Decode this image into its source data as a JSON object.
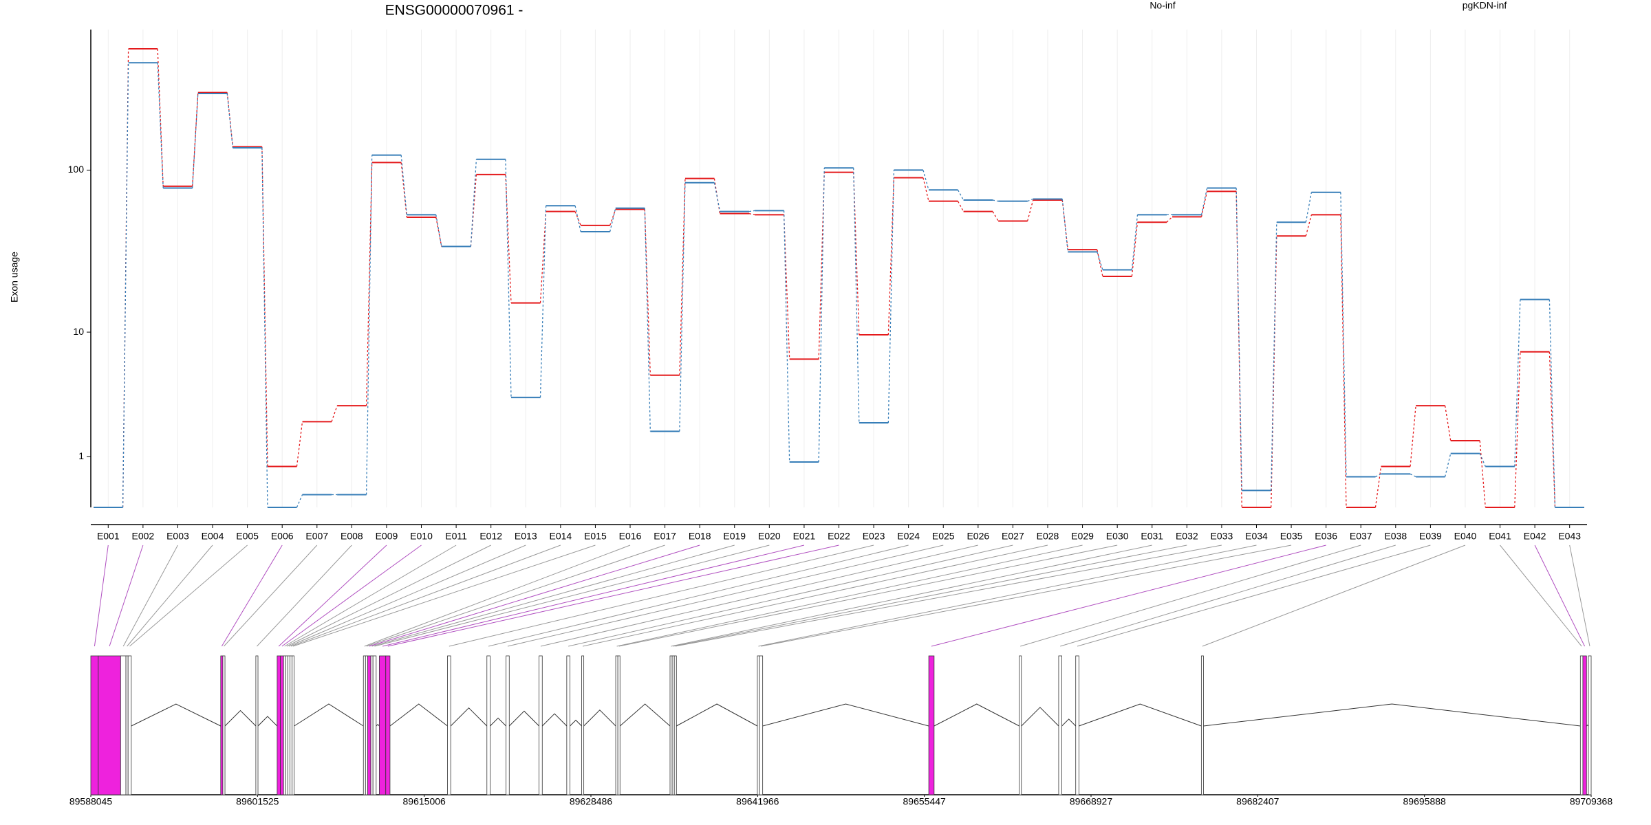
{
  "chart_data": [
    {
      "type": "step",
      "title": "ENSG00000070961 -",
      "y_label": "Exon usage",
      "yscale": "log1p",
      "grid": true,
      "ylim": [
        0,
        690
      ],
      "yticks": [
        1,
        10,
        100
      ],
      "categories": [
        "E001",
        "E002",
        "E003",
        "E004",
        "E005",
        "E006",
        "E007",
        "E008",
        "E009",
        "E010",
        "E011",
        "E012",
        "E013",
        "E014",
        "E015",
        "E016",
        "E017",
        "E018",
        "E019",
        "E020",
        "E021",
        "E022",
        "E023",
        "E024",
        "E025",
        "E026",
        "E027",
        "E028",
        "E029",
        "E030",
        "E031",
        "E032",
        "E033",
        "E034",
        "E035",
        "E036",
        "E037",
        "E038",
        "E039",
        "E040",
        "E041",
        "E042",
        "E043"
      ],
      "series": [
        {
          "name": "No-inf",
          "color": "#e41a1c",
          "values": [
            0,
            530,
            80,
            291,
            138,
            0.75,
            2.23,
            3.02,
            111,
            52,
            34.5,
            94,
            15.4,
            56.3,
            46.4,
            58,
            5.1,
            89,
            54.7,
            53.8,
            6.6,
            97,
            9.6,
            90,
            65,
            56.3,
            49.3,
            66,
            33,
            22.6,
            48.5,
            52.3,
            74.5,
            0,
            40,
            53.8,
            0,
            0.75,
            3.02,
            1.49,
            0,
            7.4,
            0
          ]
        },
        {
          "name": "pgKDN-inf",
          "color": "#377eb8",
          "values": [
            0,
            438,
            78,
            287,
            136,
            0,
            0.19,
            0.19,
            123,
            53.8,
            34.5,
            116,
            3.5,
            61,
            42.5,
            59,
            1.83,
            84,
            56.3,
            57,
            0.86,
            103,
            2.18,
            100,
            76,
            66,
            65,
            67,
            32,
            24.8,
            53.8,
            53.8,
            78,
            0.26,
            48.5,
            73.5,
            0.52,
            0.58,
            0.52,
            1.09,
            0.75,
            16.2,
            0
          ]
        }
      ]
    },
    {
      "type": "gene-model",
      "significant_color": "#ee22dd",
      "xlim": [
        89588045,
        89709368
      ],
      "xticks": [
        89588045,
        89601525,
        89615006,
        89628486,
        89641966,
        89655447,
        89668927,
        89682407,
        89695888,
        89709368
      ],
      "exons": [
        {
          "start": 89588045,
          "end": 89588648,
          "significant": true
        },
        {
          "start": 89588648,
          "end": 89590456,
          "significant": true
        },
        {
          "start": 89590456,
          "end": 89590886,
          "significant": false
        },
        {
          "start": 89590886,
          "end": 89591059,
          "significant": false
        },
        {
          "start": 89591059,
          "end": 89591317,
          "significant": false
        },
        {
          "start": 89598549,
          "end": 89598721,
          "significant": true
        },
        {
          "start": 89598721,
          "end": 89598894,
          "significant": false
        },
        {
          "start": 89601391,
          "end": 89601563,
          "significant": false
        },
        {
          "start": 89603113,
          "end": 89603371,
          "significant": true
        },
        {
          "start": 89603371,
          "end": 89603629,
          "significant": true
        },
        {
          "start": 89603629,
          "end": 89603801,
          "significant": false
        },
        {
          "start": 89603801,
          "end": 89603974,
          "significant": false
        },
        {
          "start": 89603974,
          "end": 89604146,
          "significant": false
        },
        {
          "start": 89604146,
          "end": 89604318,
          "significant": false
        },
        {
          "start": 89604318,
          "end": 89604490,
          "significant": false
        },
        {
          "start": 89610087,
          "end": 89610259,
          "significant": false
        },
        {
          "start": 89610259,
          "end": 89610431,
          "significant": false
        },
        {
          "start": 89610431,
          "end": 89610689,
          "significant": true
        },
        {
          "start": 89610689,
          "end": 89610862,
          "significant": false
        },
        {
          "start": 89610862,
          "end": 89611120,
          "significant": false
        },
        {
          "start": 89611378,
          "end": 89611895,
          "significant": true
        },
        {
          "start": 89611895,
          "end": 89612239,
          "significant": true
        },
        {
          "start": 89616889,
          "end": 89617147,
          "significant": false
        },
        {
          "start": 89620074,
          "end": 89620333,
          "significant": false
        },
        {
          "start": 89621624,
          "end": 89621882,
          "significant": false
        },
        {
          "start": 89624293,
          "end": 89624551,
          "significant": false
        },
        {
          "start": 89626532,
          "end": 89626790,
          "significant": false
        },
        {
          "start": 89627737,
          "end": 89627909,
          "significant": false
        },
        {
          "start": 89630492,
          "end": 89630665,
          "significant": false
        },
        {
          "start": 89630665,
          "end": 89630837,
          "significant": false
        },
        {
          "start": 89634883,
          "end": 89635056,
          "significant": false
        },
        {
          "start": 89635056,
          "end": 89635228,
          "significant": false
        },
        {
          "start": 89635228,
          "end": 89635400,
          "significant": false
        },
        {
          "start": 89641944,
          "end": 89642116,
          "significant": false
        },
        {
          "start": 89642116,
          "end": 89642374,
          "significant": false
        },
        {
          "start": 89655806,
          "end": 89656237,
          "significant": true
        },
        {
          "start": 89663124,
          "end": 89663296,
          "significant": false
        },
        {
          "start": 89666310,
          "end": 89666568,
          "significant": false
        },
        {
          "start": 89667688,
          "end": 89667946,
          "significant": false
        },
        {
          "start": 89677848,
          "end": 89678020,
          "significant": false
        },
        {
          "start": 89708495,
          "end": 89708695,
          "significant": false
        },
        {
          "start": 89708695,
          "end": 89708995,
          "significant": true
        },
        {
          "start": 89709145,
          "end": 89709368,
          "significant": false
        }
      ]
    }
  ]
}
